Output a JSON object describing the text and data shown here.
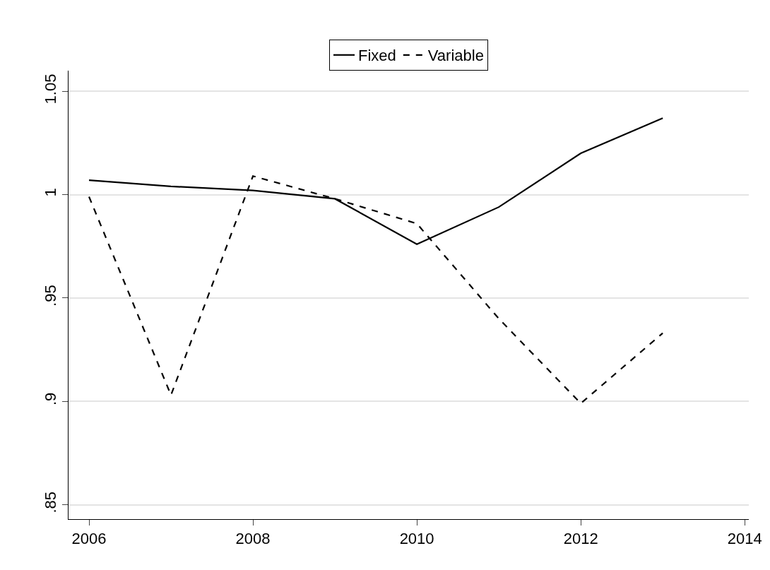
{
  "chart_data": {
    "type": "line",
    "x": [
      2006,
      2007,
      2008,
      2009,
      2010,
      2011,
      2012,
      2013
    ],
    "series": [
      {
        "name": "Fixed",
        "color": "#000000",
        "line_style": "solid",
        "values": [
          1.007,
          1.004,
          1.002,
          0.998,
          0.976,
          0.994,
          1.02,
          1.037
        ]
      },
      {
        "name": "Variable",
        "color": "#000000",
        "line_style": "dashed",
        "values": [
          0.999,
          0.903,
          1.009,
          0.998,
          0.986,
          0.94,
          0.899,
          0.933
        ]
      }
    ],
    "xlim": [
      2005.75,
      2014.05
    ],
    "xticks": [
      2006,
      2008,
      2010,
      2012,
      2014
    ],
    "ylim": [
      0.843,
      1.06
    ],
    "yticks": [
      {
        "value": 0.85,
        "label": ".85"
      },
      {
        "value": 0.9,
        "label": ".9"
      },
      {
        "value": 0.95,
        "label": ".95"
      },
      1,
      1.05
    ],
    "grid": "y",
    "legend": "top",
    "marker": "none"
  }
}
